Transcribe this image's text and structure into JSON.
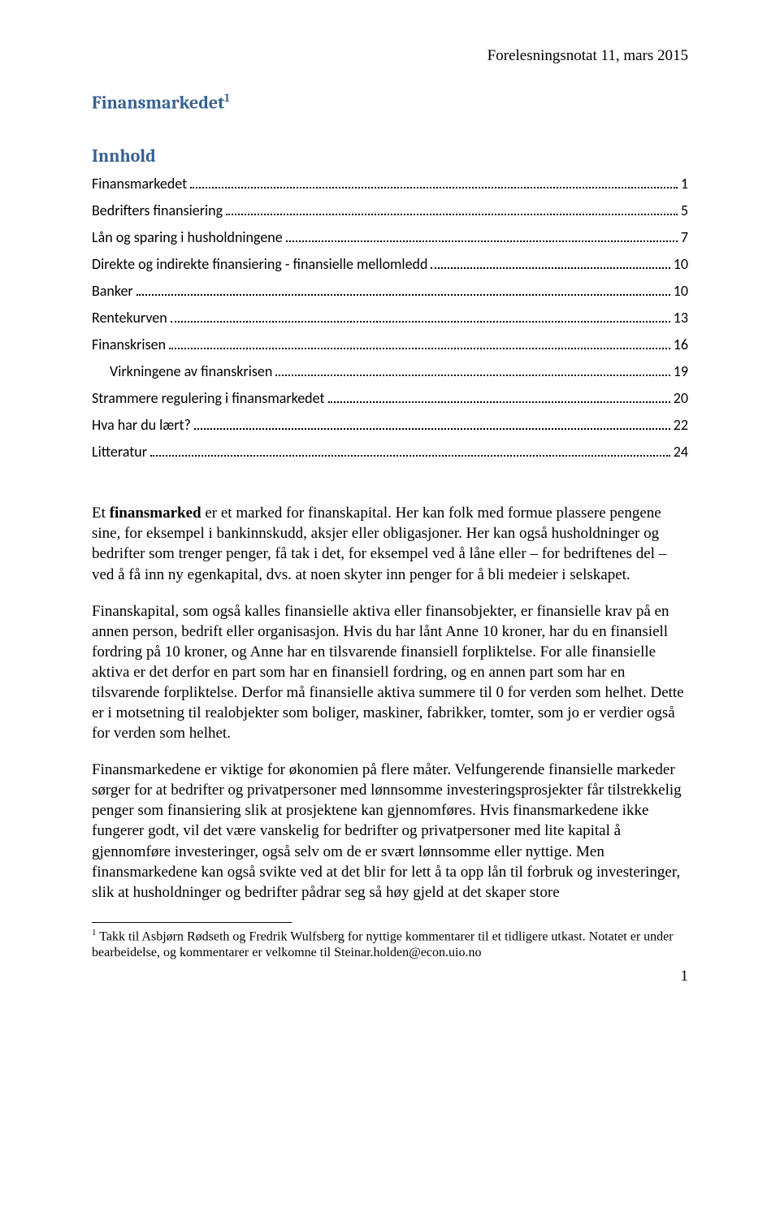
{
  "header": {
    "right": "Forelesningsnotat 11, mars 2015"
  },
  "title": {
    "text": "Finansmarkedet",
    "sup": "1"
  },
  "toc": {
    "heading": "Innhold",
    "items": [
      {
        "label": "Finansmarkedet",
        "page": "1",
        "indent": 0
      },
      {
        "label": "Bedrifters finansiering",
        "page": "5",
        "indent": 0
      },
      {
        "label": "Lån og sparing i husholdningene",
        "page": "7",
        "indent": 0
      },
      {
        "label": "Direkte og indirekte finansiering - finansielle mellomledd",
        "page": "10",
        "indent": 0
      },
      {
        "label": "Banker",
        "page": "10",
        "indent": 0
      },
      {
        "label": "Rentekurven",
        "page": "13",
        "indent": 0
      },
      {
        "label": "Finanskrisen",
        "page": "16",
        "indent": 0
      },
      {
        "label": "Virkningene av finanskrisen",
        "page": "19",
        "indent": 1
      },
      {
        "label": "Strammere regulering i finansmarkedet",
        "page": "20",
        "indent": 0
      },
      {
        "label": "Hva har du lært?",
        "page": "22",
        "indent": 0
      },
      {
        "label": "Litteratur",
        "page": "24",
        "indent": 0
      }
    ]
  },
  "body": {
    "p1_pre": "Et ",
    "p1_bold": "finansmarked",
    "p1_post": " er et marked for finanskapital. Her kan folk med formue plassere pengene sine, for eksempel i bankinnskudd, aksjer eller obligasjoner. Her kan også husholdninger og bedrifter som trenger penger, få tak i det, for eksempel ved å låne eller – for bedriftenes del – ved å få inn ny egenkapital, dvs. at noen skyter inn penger for å bli medeier i selskapet.",
    "p2": "Finanskapital, som også kalles finansielle aktiva eller finansobjekter, er finansielle krav på en annen person, bedrift eller organisasjon. Hvis du har lånt Anne 10 kroner, har du en finansiell fordring på 10 kroner, og Anne har en tilsvarende finansiell forpliktelse. For alle finansielle aktiva er det derfor en part som har en finansiell fordring, og en annen part som har en tilsvarende forpliktelse. Derfor må finansielle aktiva summere til 0 for verden som helhet. Dette er i motsetning til realobjekter som boliger, maskiner, fabrikker, tomter, som jo er verdier også for verden som helhet.",
    "p3": "Finansmarkedene er viktige for økonomien på flere måter. Velfungerende finansielle markeder sørger for at bedrifter og privatpersoner med lønnsomme investeringsprosjekter får tilstrekkelig penger som finansiering slik at prosjektene kan gjennomføres. Hvis finansmarkedene ikke fungerer godt, vil det være vanskelig for bedrifter og privatpersoner med lite kapital å gjennomføre investeringer, også selv om de er svært lønnsomme eller nyttige. Men finansmarkedene kan også svikte ved at det blir for lett å ta opp lån til forbruk og investeringer, slik at husholdninger og bedrifter pådrar seg så høy gjeld at det skaper store"
  },
  "footnote": {
    "sup": "1",
    "text": " Takk til Asbjørn Rødseth og Fredrik Wulfsberg for nyttige kommentarer til et tidligere utkast. Notatet er under bearbeidelse, og kommentarer er velkomne til Steinar.holden@econ.uio.no"
  },
  "pageNumber": "1"
}
